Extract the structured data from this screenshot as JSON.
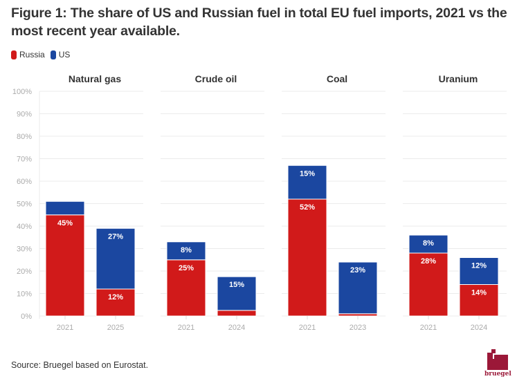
{
  "title": "Figure 1: The share of US and Russian fuel in total EU fuel imports, 2021 vs the most recent year available.",
  "legend": [
    {
      "label": "Russia",
      "color": "#d11a1a"
    },
    {
      "label": "US",
      "color": "#1b47a0"
    }
  ],
  "source": "Source: Bruegel based on Eurostat.",
  "logo_text": "bruegel",
  "chart_data": {
    "type": "bar",
    "stacked": true,
    "title": "Figure 1: The share of US and Russian fuel in total EU fuel imports, 2021 vs the most recent year available.",
    "xlabel": "",
    "ylabel": "",
    "ylim": [
      0,
      100
    ],
    "y_ticks": [
      "0%",
      "10%",
      "20%",
      "30%",
      "40%",
      "50%",
      "60%",
      "70%",
      "80%",
      "90%",
      "100%"
    ],
    "grid": true,
    "legend_position": "top-left",
    "panels": [
      {
        "name": "Natural gas",
        "categories": [
          "2021",
          "2025"
        ],
        "series": [
          {
            "name": "Russia",
            "values": [
              45,
              12
            ],
            "labels": [
              "45%",
              "12%"
            ]
          },
          {
            "name": "US",
            "values": [
              6,
              27
            ],
            "labels": [
              "",
              "27%"
            ]
          }
        ]
      },
      {
        "name": "Crude oil",
        "categories": [
          "2021",
          "2024"
        ],
        "series": [
          {
            "name": "Russia",
            "values": [
              25,
              2.5
            ],
            "labels": [
              "25%",
              ""
            ]
          },
          {
            "name": "US",
            "values": [
              8,
              15
            ],
            "labels": [
              "8%",
              "15%"
            ]
          }
        ]
      },
      {
        "name": "Coal",
        "categories": [
          "2021",
          "2023"
        ],
        "series": [
          {
            "name": "Russia",
            "values": [
              52,
              1
            ],
            "labels": [
              "52%",
              ""
            ]
          },
          {
            "name": "US",
            "values": [
              15,
              23
            ],
            "labels": [
              "15%",
              "23%"
            ]
          }
        ]
      },
      {
        "name": "Uranium",
        "categories": [
          "2021",
          "2024"
        ],
        "series": [
          {
            "name": "Russia",
            "values": [
              28,
              14
            ],
            "labels": [
              "28%",
              "14%"
            ]
          },
          {
            "name": "US",
            "values": [
              8,
              12
            ],
            "labels": [
              "8%",
              "12%"
            ]
          }
        ]
      }
    ]
  }
}
